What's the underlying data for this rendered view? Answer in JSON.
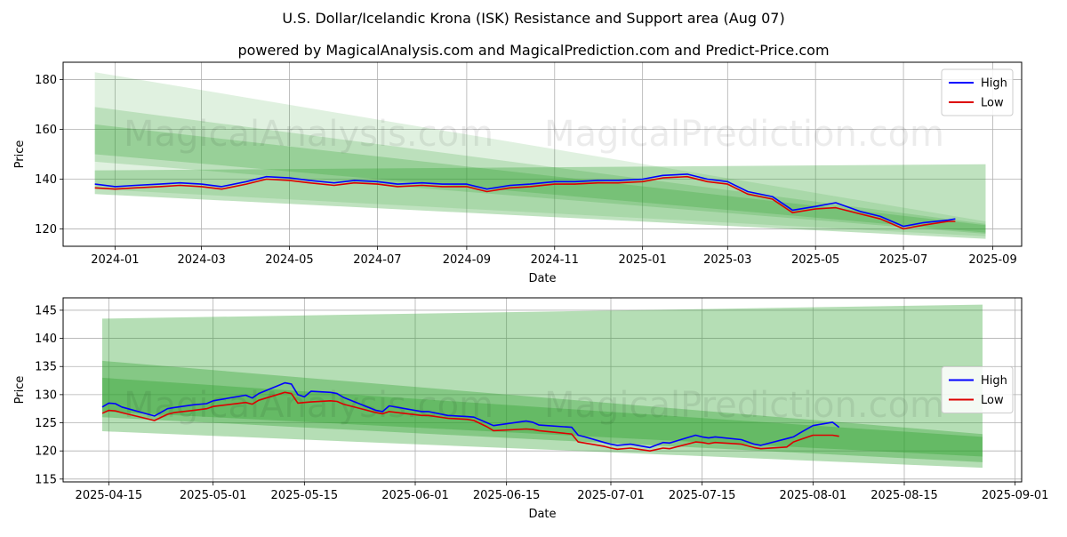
{
  "title": "U.S. Dollar/Icelandic Krona (ISK) Resistance and Support area (Aug 07)",
  "subtitle": "powered by MagicalAnalysis.com and MagicalPrediction.com and Predict-Price.com",
  "watermarks": [
    "MagicalAnalysis.com",
    "MagicalPrediction.com"
  ],
  "colors": {
    "high": "#0000ff",
    "low": "#dd0000",
    "band": "#2ca02c"
  },
  "chart_data": [
    {
      "type": "line",
      "xlabel": "Date",
      "ylabel": "Price",
      "x_ticks": [
        "2024-01",
        "2024-03",
        "2024-05",
        "2024-07",
        "2024-09",
        "2024-11",
        "2025-01",
        "2025-03",
        "2025-05",
        "2025-07",
        "2025-09"
      ],
      "y_ticks": [
        120,
        140,
        160,
        180
      ],
      "xlim": [
        "2023-11-26",
        "2025-09-21"
      ],
      "ylim": [
        113,
        187
      ],
      "grid": true,
      "legend": "top-right",
      "series": [
        {
          "name": "High",
          "x": [
            "2023-12-18",
            "2024-01-01",
            "2024-01-15",
            "2024-02-01",
            "2024-02-15",
            "2024-03-01",
            "2024-03-15",
            "2024-04-01",
            "2024-04-15",
            "2024-05-01",
            "2024-05-15",
            "2024-06-01",
            "2024-06-15",
            "2024-07-01",
            "2024-07-15",
            "2024-08-01",
            "2024-08-15",
            "2024-09-01",
            "2024-09-15",
            "2024-10-01",
            "2024-10-15",
            "2024-11-01",
            "2024-11-15",
            "2024-12-01",
            "2024-12-15",
            "2025-01-01",
            "2025-01-15",
            "2025-02-01",
            "2025-02-15",
            "2025-03-01",
            "2025-03-15",
            "2025-04-01",
            "2025-04-15",
            "2025-05-01",
            "2025-05-15",
            "2025-06-01",
            "2025-06-15",
            "2025-07-01",
            "2025-07-15",
            "2025-08-01",
            "2025-08-06"
          ],
          "values": [
            138,
            137,
            137.5,
            138,
            138.5,
            138,
            137,
            139,
            141,
            140.5,
            139.5,
            138.5,
            139.5,
            139,
            138,
            138.5,
            138,
            138,
            136,
            137.5,
            138,
            139,
            139,
            139.5,
            139.5,
            140,
            141.5,
            142,
            140,
            139,
            135,
            133,
            127.5,
            129,
            130.5,
            127,
            125,
            121,
            122.5,
            123.5,
            124
          ]
        },
        {
          "name": "Low",
          "x": [
            "2023-12-18",
            "2024-01-01",
            "2024-01-15",
            "2024-02-01",
            "2024-02-15",
            "2024-03-01",
            "2024-03-15",
            "2024-04-01",
            "2024-04-15",
            "2024-05-01",
            "2024-05-15",
            "2024-06-01",
            "2024-06-15",
            "2024-07-01",
            "2024-07-15",
            "2024-08-01",
            "2024-08-15",
            "2024-09-01",
            "2024-09-15",
            "2024-10-01",
            "2024-10-15",
            "2024-11-01",
            "2024-11-15",
            "2024-12-01",
            "2024-12-15",
            "2025-01-01",
            "2025-01-15",
            "2025-02-01",
            "2025-02-15",
            "2025-03-01",
            "2025-03-15",
            "2025-04-01",
            "2025-04-15",
            "2025-05-01",
            "2025-05-15",
            "2025-06-01",
            "2025-06-15",
            "2025-07-01",
            "2025-07-15",
            "2025-08-01",
            "2025-08-06"
          ],
          "values": [
            136.5,
            136,
            136.5,
            137,
            137.5,
            137,
            136,
            138,
            140,
            139.5,
            138.5,
            137.5,
            138.5,
            138,
            137,
            137.5,
            137,
            137,
            135,
            136.5,
            137,
            138,
            138,
            138.5,
            138.5,
            139,
            140.5,
            141,
            139,
            138,
            134,
            132,
            126.5,
            128,
            128.5,
            126,
            124,
            120,
            121.5,
            123,
            123
          ]
        }
      ],
      "bands": [
        {
          "start": "2023-12-18",
          "end": "2025-08-27",
          "upper": [
            183,
            123
          ],
          "lower": [
            136,
            117
          ]
        },
        {
          "start": "2023-12-18",
          "end": "2025-08-27",
          "upper": [
            169,
            122
          ],
          "lower": [
            147,
            118
          ]
        },
        {
          "start": "2023-12-18",
          "end": "2025-08-27",
          "upper": [
            162,
            121.5
          ],
          "lower": [
            150,
            118.5
          ]
        },
        {
          "start": "2023-12-18",
          "end": "2025-08-27",
          "upper": [
            143.5,
            146
          ],
          "lower": [
            134,
            116
          ]
        }
      ]
    },
    {
      "type": "line",
      "xlabel": "Date",
      "ylabel": "Price",
      "x_ticks": [
        "2025-04-15",
        "2025-05-01",
        "2025-05-15",
        "2025-06-01",
        "2025-06-15",
        "2025-07-01",
        "2025-07-15",
        "2025-08-01",
        "2025-08-15",
        "2025-09-01"
      ],
      "y_ticks": [
        115,
        120,
        125,
        130,
        135,
        140,
        145
      ],
      "xlim": [
        "2025-04-08",
        "2025-09-02"
      ],
      "ylim": [
        114.5,
        147.2
      ],
      "grid": true,
      "legend": "center-right",
      "series": [
        {
          "name": "High",
          "x": [
            "2025-04-14",
            "2025-04-15",
            "2025-04-16",
            "2025-04-17",
            "2025-04-22",
            "2025-04-24",
            "2025-04-25",
            "2025-04-28",
            "2025-04-30",
            "2025-05-01",
            "2025-05-06",
            "2025-05-07",
            "2025-05-08",
            "2025-05-12",
            "2025-05-13",
            "2025-05-14",
            "2025-05-15",
            "2025-05-16",
            "2025-05-19",
            "2025-05-20",
            "2025-05-21",
            "2025-05-26",
            "2025-05-27",
            "2025-05-28",
            "2025-06-02",
            "2025-06-03",
            "2025-06-06",
            "2025-06-09",
            "2025-06-10",
            "2025-06-12",
            "2025-06-13",
            "2025-06-18",
            "2025-06-19",
            "2025-06-20",
            "2025-06-25",
            "2025-06-26",
            "2025-06-27",
            "2025-06-30",
            "2025-07-01",
            "2025-07-02",
            "2025-07-04",
            "2025-07-07",
            "2025-07-09",
            "2025-07-10",
            "2025-07-14",
            "2025-07-15",
            "2025-07-16",
            "2025-07-17",
            "2025-07-21",
            "2025-07-23",
            "2025-07-24",
            "2025-07-28",
            "2025-07-29",
            "2025-07-30",
            "2025-08-01",
            "2025-08-04",
            "2025-08-05"
          ],
          "values": [
            127.8,
            128.5,
            128.4,
            127.8,
            126.2,
            127.5,
            127.7,
            128.2,
            128.4,
            128.9,
            129.9,
            129.4,
            130.2,
            132.1,
            131.9,
            130.0,
            129.6,
            130.6,
            130.4,
            130.2,
            129.5,
            127.2,
            127.0,
            128.0,
            127.0,
            127.0,
            126.3,
            126.1,
            126.0,
            125.0,
            124.5,
            125.3,
            125.1,
            124.6,
            124.2,
            122.8,
            122.5,
            121.5,
            121.2,
            121.0,
            121.2,
            120.6,
            121.5,
            121.4,
            122.8,
            122.5,
            122.3,
            122.5,
            122.0,
            121.2,
            121.0,
            122.2,
            122.5,
            123.2,
            124.5,
            125.1,
            124.2
          ]
        },
        {
          "name": "Low",
          "x": [
            "2025-04-14",
            "2025-04-15",
            "2025-04-16",
            "2025-04-17",
            "2025-04-22",
            "2025-04-24",
            "2025-04-25",
            "2025-04-28",
            "2025-04-30",
            "2025-05-01",
            "2025-05-06",
            "2025-05-07",
            "2025-05-08",
            "2025-05-12",
            "2025-05-13",
            "2025-05-14",
            "2025-05-15",
            "2025-05-16",
            "2025-05-19",
            "2025-05-20",
            "2025-05-21",
            "2025-05-26",
            "2025-05-27",
            "2025-05-28",
            "2025-06-02",
            "2025-06-03",
            "2025-06-06",
            "2025-06-09",
            "2025-06-10",
            "2025-06-12",
            "2025-06-13",
            "2025-06-18",
            "2025-06-19",
            "2025-06-20",
            "2025-06-25",
            "2025-06-26",
            "2025-06-27",
            "2025-06-30",
            "2025-07-01",
            "2025-07-02",
            "2025-07-04",
            "2025-07-07",
            "2025-07-09",
            "2025-07-10",
            "2025-07-14",
            "2025-07-15",
            "2025-07-16",
            "2025-07-17",
            "2025-07-21",
            "2025-07-23",
            "2025-07-24",
            "2025-07-28",
            "2025-07-29",
            "2025-07-30",
            "2025-08-01",
            "2025-08-04",
            "2025-08-05"
          ],
          "values": [
            126.7,
            127.2,
            127.1,
            126.8,
            125.4,
            126.5,
            126.8,
            127.2,
            127.5,
            127.9,
            128.6,
            128.3,
            129.0,
            130.4,
            130.2,
            128.5,
            128.6,
            128.7,
            128.9,
            128.8,
            128.3,
            126.8,
            126.6,
            127.0,
            126.3,
            126.3,
            125.8,
            125.6,
            125.4,
            124.3,
            123.6,
            123.9,
            123.8,
            123.6,
            123.0,
            121.6,
            121.4,
            120.8,
            120.5,
            120.3,
            120.5,
            120.0,
            120.5,
            120.4,
            121.6,
            121.5,
            121.3,
            121.5,
            121.2,
            120.6,
            120.4,
            120.7,
            121.6,
            122.0,
            122.8,
            122.8,
            122.6
          ]
        }
      ],
      "bands": [
        {
          "start": "2025-04-14",
          "end": "2025-08-27",
          "upper": [
            143.5,
            146
          ],
          "lower": [
            123.5,
            117
          ]
        },
        {
          "start": "2025-04-14",
          "end": "2025-08-27",
          "upper": [
            136,
            123
          ],
          "lower": [
            126,
            118
          ]
        },
        {
          "start": "2025-04-14",
          "end": "2025-08-27",
          "upper": [
            133,
            122.5
          ],
          "lower": [
            127,
            119
          ]
        }
      ]
    }
  ]
}
